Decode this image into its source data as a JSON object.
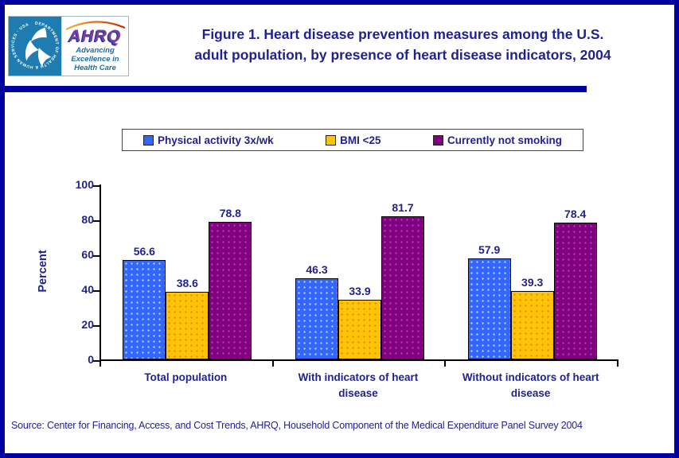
{
  "theme": {
    "navy_text": "#22228E",
    "border_and_rule": "#0000A0",
    "hhs_panel_blue": "#1E7CB0",
    "ahrq_purple": "#7B3F9E",
    "arc_orange": "#E07818"
  },
  "header": {
    "title": "Figure 1. Heart disease prevention measures among the U.S. adult population, by presence of heart disease indicators, 2004",
    "title_lines": [
      "Figure 1. Heart disease prevention measures among the U.S.",
      "adult population, by presence of heart disease indicators, 2004"
    ],
    "logo": {
      "hhs_ring_text": "DEPARTMENT OF HEALTH & HUMAN SERVICES · USA",
      "ahrq_acronym": "AHRQ",
      "ahrq_tagline": "Advancing Excellence in Health Care"
    }
  },
  "chart_data": {
    "type": "bar",
    "title": "Figure 1. Heart disease prevention measures among the U.S. adult population, by presence of heart disease indicators, 2004",
    "categories": [
      "Total population",
      "With indicators of heart disease",
      "Without indicators of heart disease"
    ],
    "series": [
      {
        "name": "Physical activity 3x/wk",
        "color": "#3366FF",
        "values": [
          56.6,
          46.3,
          57.9
        ]
      },
      {
        "name": "BMI <25",
        "color": "#FFC408",
        "values": [
          38.6,
          33.9,
          39.3
        ]
      },
      {
        "name": "Currently not smoking",
        "color": "#800080",
        "values": [
          78.8,
          81.7,
          78.4
        ]
      }
    ],
    "xlabel": "",
    "ylabel": "Percent",
    "ylim": [
      0,
      100
    ],
    "yticks": [
      0,
      20,
      40,
      60,
      80,
      100
    ],
    "grid": false,
    "legend_position": "top",
    "value_labels": true
  },
  "source": {
    "text": "Source: Center for Financing, Access, and Cost Trends, AHRQ, Household Component of the Medical Expenditure Panel Survey 2004"
  }
}
